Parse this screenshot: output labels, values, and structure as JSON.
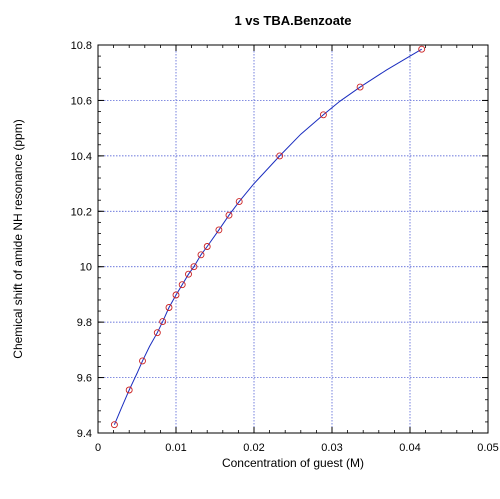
{
  "chart_data": {
    "type": "scatter",
    "title": "1 vs TBA.Benzoate",
    "xlabel": "Concentration of guest (M)",
    "ylabel": "Chemical shift of amide NH resonance (ppm)",
    "xlim": [
      0,
      0.05
    ],
    "ylim": [
      9.4,
      10.8
    ],
    "x_ticks": [
      0,
      0.01,
      0.02,
      0.03,
      0.04,
      0.05
    ],
    "x_tick_labels": [
      "0",
      "0.01",
      "0.02",
      "0.03",
      "0.04",
      "0.05"
    ],
    "y_ticks": [
      9.4,
      9.6,
      9.8,
      10,
      10.2,
      10.4,
      10.6,
      10.8
    ],
    "y_tick_labels": [
      "9.4",
      "9.6",
      "9.8",
      "10",
      "10.2",
      "10.4",
      "10.6",
      "10.8"
    ],
    "grid": true,
    "colors": {
      "points": "#cc2222",
      "fit_line": "#1a2dbf",
      "grid": "#3a4ad0",
      "axis": "#000000"
    },
    "series": [
      {
        "kind": "points",
        "x": [
          0.0021,
          0.004,
          0.0057,
          0.0076,
          0.0083,
          0.0091,
          0.01,
          0.0108,
          0.0116,
          0.0123,
          0.0132,
          0.014,
          0.0155,
          0.0168,
          0.0181,
          0.0233,
          0.0289,
          0.0336,
          0.0415
        ],
        "y": [
          9.43,
          9.555,
          9.66,
          9.762,
          9.802,
          9.853,
          9.898,
          9.935,
          9.973,
          10.0,
          10.043,
          10.073,
          10.133,
          10.186,
          10.235,
          10.4,
          10.548,
          10.648,
          10.785
        ]
      },
      {
        "kind": "fit_line",
        "x": [
          0.0021,
          0.003,
          0.004,
          0.005,
          0.0057,
          0.0066,
          0.0076,
          0.0083,
          0.0091,
          0.01,
          0.0108,
          0.0116,
          0.0123,
          0.0132,
          0.014,
          0.0155,
          0.0168,
          0.0181,
          0.02,
          0.0233,
          0.026,
          0.0289,
          0.031,
          0.0336,
          0.037,
          0.0415
        ],
        "y": [
          9.43,
          9.49,
          9.555,
          9.615,
          9.66,
          9.712,
          9.762,
          9.802,
          9.853,
          9.898,
          9.935,
          9.973,
          10.0,
          10.043,
          10.073,
          10.133,
          10.186,
          10.235,
          10.3,
          10.4,
          10.478,
          10.548,
          10.597,
          10.648,
          10.71,
          10.785
        ]
      }
    ]
  }
}
